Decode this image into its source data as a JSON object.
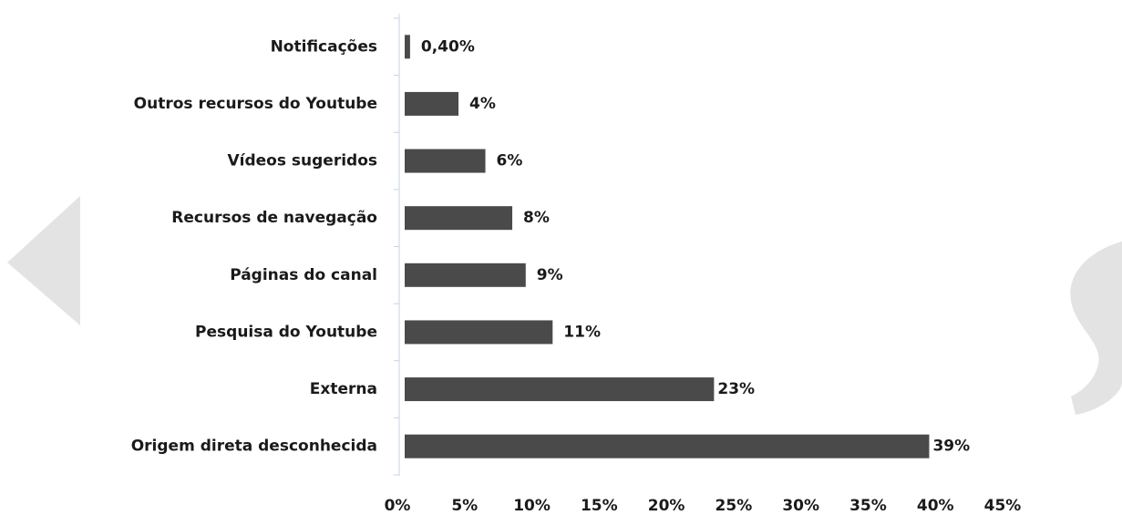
{
  "chart_data": {
    "type": "barh",
    "categories": [
      "Notificações",
      "Outros recursos do Youtube",
      "Vídeos sugeridos",
      "Recursos de navegação",
      "Páginas do canal",
      "Pesquisa do Youtube",
      "Externa",
      "Origem direta desconhecida"
    ],
    "values": [
      0.4,
      4,
      6,
      8,
      9,
      11,
      23,
      39
    ],
    "value_labels": [
      "0,40%",
      "4%",
      "6%",
      "8%",
      "9%",
      "11%",
      "23%",
      "39%"
    ],
    "color": "#4a4a4a",
    "xlim": [
      0,
      45
    ],
    "xticks": [
      {
        "value": 0,
        "label": "0%"
      },
      {
        "value": 5,
        "label": "5%"
      },
      {
        "value": 10,
        "label": "10%"
      },
      {
        "value": 15,
        "label": "15%"
      },
      {
        "value": 20,
        "label": "20%"
      },
      {
        "value": 25,
        "label": "25%"
      },
      {
        "value": 30,
        "label": "30%"
      },
      {
        "value": 35,
        "label": "35%"
      },
      {
        "value": 40,
        "label": "40%"
      },
      {
        "value": 45,
        "label": "45%"
      }
    ]
  }
}
